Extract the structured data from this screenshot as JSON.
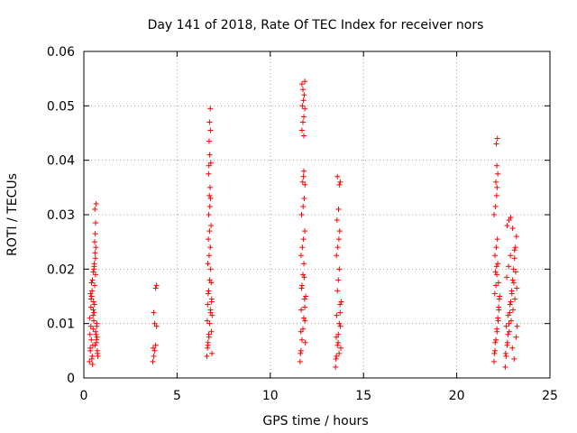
{
  "chart_data": {
    "type": "scatter",
    "title": "Day 141 of 2018, Rate Of TEC Index for receiver nors",
    "xlabel": "GPS time / hours",
    "ylabel": "ROTI / TECUs",
    "xlim": [
      0,
      25
    ],
    "ylim": [
      0,
      0.06
    ],
    "xticks": [
      0,
      5,
      10,
      15,
      20,
      25
    ],
    "yticks": [
      0,
      0.01,
      0.02,
      0.03,
      0.04,
      0.05,
      0.06
    ],
    "xtick_labels": [
      "0",
      "5",
      "10",
      "15",
      "20",
      "25"
    ],
    "ytick_labels": [
      "0",
      "0.01",
      "0.02",
      "0.03",
      "0.04",
      "0.05",
      "0.06"
    ],
    "grid": true,
    "marker": "+",
    "color": "#ff0000",
    "series": [
      {
        "name": "ROTI",
        "points": [
          [
            0.3,
            0.003
          ],
          [
            0.35,
            0.005
          ],
          [
            0.4,
            0.007
          ],
          [
            0.45,
            0.004
          ],
          [
            0.5,
            0.009
          ],
          [
            0.55,
            0.012
          ],
          [
            0.6,
            0.006
          ],
          [
            0.65,
            0.008
          ],
          [
            0.7,
            0.01
          ],
          [
            0.75,
            0.004
          ],
          [
            0.32,
            0.011
          ],
          [
            0.38,
            0.013
          ],
          [
            0.42,
            0.015
          ],
          [
            0.48,
            0.006
          ],
          [
            0.52,
            0.014
          ],
          [
            0.58,
            0.017
          ],
          [
            0.62,
            0.019
          ],
          [
            0.68,
            0.007
          ],
          [
            0.72,
            0.005
          ],
          [
            0.33,
            0.008
          ],
          [
            0.37,
            0.0095
          ],
          [
            0.43,
            0.0035
          ],
          [
            0.47,
            0.0025
          ],
          [
            0.53,
            0.0105
          ],
          [
            0.57,
            0.0135
          ],
          [
            0.63,
            0.0085
          ],
          [
            0.67,
            0.0065
          ],
          [
            0.73,
            0.0045
          ],
          [
            0.36,
            0.0155
          ],
          [
            0.44,
            0.016
          ],
          [
            0.46,
            0.018
          ],
          [
            0.54,
            0.02
          ],
          [
            0.56,
            0.021
          ],
          [
            0.6,
            0.023
          ],
          [
            0.62,
            0.022
          ],
          [
            0.64,
            0.024
          ],
          [
            0.58,
            0.025
          ],
          [
            0.61,
            0.0265
          ],
          [
            0.63,
            0.0285
          ],
          [
            0.59,
            0.031
          ],
          [
            0.66,
            0.032
          ],
          [
            0.55,
            0.0205
          ],
          [
            0.5,
            0.0195
          ],
          [
            0.41,
            0.0175
          ],
          [
            0.39,
            0.0145
          ],
          [
            0.51,
            0.0125
          ],
          [
            0.49,
            0.0115
          ],
          [
            0.69,
            0.0095
          ],
          [
            0.71,
            0.0075
          ],
          [
            0.34,
            0.0055
          ],
          [
            3.7,
            0.003
          ],
          [
            3.75,
            0.004
          ],
          [
            3.8,
            0.005
          ],
          [
            3.85,
            0.006
          ],
          [
            3.9,
            0.0095
          ],
          [
            3.8,
            0.01
          ],
          [
            3.75,
            0.012
          ],
          [
            3.85,
            0.0165
          ],
          [
            3.9,
            0.017
          ],
          [
            3.72,
            0.0055
          ],
          [
            6.6,
            0.004
          ],
          [
            6.65,
            0.006
          ],
          [
            6.7,
            0.008
          ],
          [
            6.75,
            0.01
          ],
          [
            6.8,
            0.012
          ],
          [
            6.85,
            0.014
          ],
          [
            6.7,
            0.016
          ],
          [
            6.75,
            0.018
          ],
          [
            6.8,
            0.02
          ],
          [
            6.65,
            0.021
          ],
          [
            6.72,
            0.0225
          ],
          [
            6.78,
            0.024
          ],
          [
            6.68,
            0.0255
          ],
          [
            6.74,
            0.027
          ],
          [
            6.82,
            0.028
          ],
          [
            6.7,
            0.03
          ],
          [
            6.76,
            0.0315
          ],
          [
            6.8,
            0.033
          ],
          [
            6.73,
            0.0335
          ],
          [
            6.77,
            0.035
          ],
          [
            6.69,
            0.0375
          ],
          [
            6.71,
            0.039
          ],
          [
            6.81,
            0.0395
          ],
          [
            6.75,
            0.041
          ],
          [
            6.72,
            0.0435
          ],
          [
            6.79,
            0.0455
          ],
          [
            6.74,
            0.047
          ],
          [
            6.78,
            0.0495
          ],
          [
            6.66,
            0.0065
          ],
          [
            6.84,
            0.0085
          ],
          [
            6.62,
            0.0105
          ],
          [
            6.88,
            0.0115
          ],
          [
            6.64,
            0.0135
          ],
          [
            6.86,
            0.0145
          ],
          [
            6.67,
            0.0155
          ],
          [
            6.83,
            0.0175
          ],
          [
            6.63,
            0.0055
          ],
          [
            6.87,
            0.0045
          ],
          [
            6.71,
            0.0075
          ],
          [
            6.79,
            0.0125
          ],
          [
            11.6,
            0.003
          ],
          [
            11.65,
            0.005
          ],
          [
            11.7,
            0.007
          ],
          [
            11.75,
            0.009
          ],
          [
            11.8,
            0.011
          ],
          [
            11.85,
            0.013
          ],
          [
            11.9,
            0.015
          ],
          [
            11.7,
            0.017
          ],
          [
            11.75,
            0.019
          ],
          [
            11.8,
            0.021
          ],
          [
            11.65,
            0.0225
          ],
          [
            11.72,
            0.024
          ],
          [
            11.78,
            0.0255
          ],
          [
            11.85,
            0.027
          ],
          [
            11.68,
            0.03
          ],
          [
            11.76,
            0.0315
          ],
          [
            11.82,
            0.033
          ],
          [
            11.74,
            0.036
          ],
          [
            11.78,
            0.037
          ],
          [
            11.8,
            0.038
          ],
          [
            11.86,
            0.0355
          ],
          [
            11.7,
            0.0455
          ],
          [
            11.75,
            0.047
          ],
          [
            11.8,
            0.048
          ],
          [
            11.85,
            0.0495
          ],
          [
            11.72,
            0.05
          ],
          [
            11.78,
            0.051
          ],
          [
            11.82,
            0.052
          ],
          [
            11.75,
            0.053
          ],
          [
            11.7,
            0.054
          ],
          [
            11.85,
            0.0545
          ],
          [
            11.8,
            0.0445
          ],
          [
            11.62,
            0.0045
          ],
          [
            11.88,
            0.0065
          ],
          [
            11.64,
            0.0085
          ],
          [
            11.86,
            0.0105
          ],
          [
            11.66,
            0.0125
          ],
          [
            11.84,
            0.0145
          ],
          [
            11.68,
            0.0165
          ],
          [
            11.82,
            0.0185
          ],
          [
            13.5,
            0.002
          ],
          [
            13.55,
            0.004
          ],
          [
            13.6,
            0.006
          ],
          [
            13.65,
            0.008
          ],
          [
            13.7,
            0.01
          ],
          [
            13.75,
            0.012
          ],
          [
            13.8,
            0.014
          ],
          [
            13.6,
            0.016
          ],
          [
            13.65,
            0.018
          ],
          [
            13.7,
            0.02
          ],
          [
            13.55,
            0.0225
          ],
          [
            13.62,
            0.024
          ],
          [
            13.68,
            0.0255
          ],
          [
            13.72,
            0.027
          ],
          [
            13.58,
            0.029
          ],
          [
            13.66,
            0.031
          ],
          [
            13.7,
            0.0355
          ],
          [
            13.75,
            0.036
          ],
          [
            13.6,
            0.037
          ],
          [
            13.52,
            0.0035
          ],
          [
            13.78,
            0.0055
          ],
          [
            13.54,
            0.0075
          ],
          [
            13.76,
            0.0095
          ],
          [
            13.56,
            0.0115
          ],
          [
            13.74,
            0.0135
          ],
          [
            13.64,
            0.0065
          ],
          [
            13.69,
            0.0045
          ],
          [
            22.0,
            0.003
          ],
          [
            22.05,
            0.005
          ],
          [
            22.1,
            0.007
          ],
          [
            22.15,
            0.009
          ],
          [
            22.2,
            0.011
          ],
          [
            22.25,
            0.013
          ],
          [
            22.3,
            0.015
          ],
          [
            22.1,
            0.017
          ],
          [
            22.15,
            0.019
          ],
          [
            22.2,
            0.021
          ],
          [
            22.05,
            0.0225
          ],
          [
            22.12,
            0.024
          ],
          [
            22.18,
            0.0255
          ],
          [
            22.0,
            0.03
          ],
          [
            22.08,
            0.0315
          ],
          [
            22.14,
            0.0335
          ],
          [
            22.16,
            0.035
          ],
          [
            22.1,
            0.036
          ],
          [
            22.2,
            0.0375
          ],
          [
            22.15,
            0.039
          ],
          [
            22.12,
            0.043
          ],
          [
            22.18,
            0.044
          ],
          [
            22.6,
            0.002
          ],
          [
            22.65,
            0.004
          ],
          [
            22.7,
            0.006
          ],
          [
            22.75,
            0.008
          ],
          [
            22.8,
            0.01
          ],
          [
            22.85,
            0.012
          ],
          [
            22.9,
            0.014
          ],
          [
            22.95,
            0.016
          ],
          [
            23.0,
            0.018
          ],
          [
            23.05,
            0.02
          ],
          [
            23.1,
            0.022
          ],
          [
            23.15,
            0.024
          ],
          [
            23.2,
            0.026
          ],
          [
            22.7,
            0.028
          ],
          [
            22.8,
            0.029
          ],
          [
            22.9,
            0.0295
          ],
          [
            23.0,
            0.0275
          ],
          [
            23.1,
            0.0235
          ],
          [
            22.62,
            0.0045
          ],
          [
            22.72,
            0.0065
          ],
          [
            22.82,
            0.0085
          ],
          [
            22.92,
            0.0105
          ],
          [
            23.02,
            0.0125
          ],
          [
            23.12,
            0.0145
          ],
          [
            23.22,
            0.0165
          ],
          [
            22.68,
            0.0185
          ],
          [
            22.78,
            0.0205
          ],
          [
            22.88,
            0.0225
          ],
          [
            22.98,
            0.0055
          ],
          [
            23.08,
            0.0035
          ],
          [
            23.18,
            0.0075
          ],
          [
            22.66,
            0.0095
          ],
          [
            22.76,
            0.0115
          ],
          [
            22.86,
            0.0135
          ],
          [
            22.96,
            0.0155
          ],
          [
            23.06,
            0.0175
          ],
          [
            23.16,
            0.0195
          ],
          [
            23.24,
            0.0095
          ],
          [
            22.02,
            0.0045
          ],
          [
            22.06,
            0.0065
          ],
          [
            22.16,
            0.0085
          ],
          [
            22.22,
            0.0105
          ],
          [
            22.26,
            0.0125
          ],
          [
            22.28,
            0.0145
          ],
          [
            22.04,
            0.0155
          ],
          [
            22.24,
            0.0175
          ],
          [
            22.08,
            0.0195
          ],
          [
            22.14,
            0.0205
          ]
        ]
      }
    ]
  }
}
